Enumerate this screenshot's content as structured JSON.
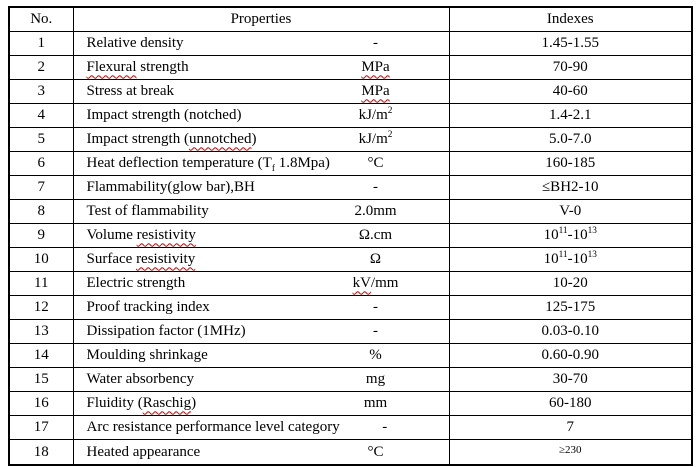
{
  "page": {
    "background": "#ffffff"
  },
  "table": {
    "border_color": "#000000",
    "text_color": "#000000",
    "squiggle_color": "#cc0000",
    "headers": {
      "no": "No.",
      "properties": "Properties",
      "indexes": "Indexes"
    },
    "rows": [
      {
        "no": "1",
        "name": [
          {
            "t": "Relative density"
          }
        ],
        "unit": [
          {
            "t": "-"
          }
        ],
        "index": [
          {
            "t": "1.45-1.55"
          }
        ]
      },
      {
        "no": "2",
        "name": [
          {
            "t": "Flexural",
            "sq": true
          },
          {
            "t": " strength"
          }
        ],
        "unit": [
          {
            "t": "MPa",
            "sq": true
          }
        ],
        "index": [
          {
            "t": "70-90"
          }
        ]
      },
      {
        "no": "3",
        "name": [
          {
            "t": "Stress at break"
          }
        ],
        "unit": [
          {
            "t": "MPa",
            "sq": true
          }
        ],
        "index": [
          {
            "t": "40-60"
          }
        ]
      },
      {
        "no": "4",
        "name": [
          {
            "t": "Impact strength (notched)"
          }
        ],
        "unit": [
          {
            "t": "kJ/m"
          },
          {
            "t": "2",
            "sup": true
          }
        ],
        "index": [
          {
            "t": "1.4-2.1"
          }
        ]
      },
      {
        "no": "5",
        "name": [
          {
            "t": "Impact strength ("
          },
          {
            "t": "unnotched",
            "sq": true
          },
          {
            "t": ")"
          }
        ],
        "unit": [
          {
            "t": "kJ/m"
          },
          {
            "t": "2",
            "sup": true
          }
        ],
        "index": [
          {
            "t": "5.0-7.0"
          }
        ]
      },
      {
        "no": "6",
        "name": [
          {
            "t": "Heat deflection temperature (T"
          },
          {
            "t": "f",
            "sub": true,
            "sq": true
          },
          {
            "t": " 1.8Mpa)"
          }
        ],
        "unit": [
          {
            "t": "°C"
          }
        ],
        "index": [
          {
            "t": "160-185"
          }
        ]
      },
      {
        "no": "7",
        "name": [
          {
            "t": "Flammability(glow bar),BH"
          }
        ],
        "unit": [
          {
            "t": "-"
          }
        ],
        "index": [
          {
            "t": "≤BH2-10"
          }
        ]
      },
      {
        "no": "8",
        "name": [
          {
            "t": "Test of flammability"
          }
        ],
        "unit": [
          {
            "t": "2.0mm"
          }
        ],
        "index": [
          {
            "t": "V-0"
          }
        ]
      },
      {
        "no": "9",
        "name": [
          {
            "t": "Volume "
          },
          {
            "t": "resistivity",
            "sq": true
          }
        ],
        "unit": [
          {
            "t": "Ω.cm"
          }
        ],
        "index": [
          {
            "t": "10"
          },
          {
            "t": "11",
            "sup": true
          },
          {
            "t": "-10"
          },
          {
            "t": "13",
            "sup": true
          }
        ]
      },
      {
        "no": "10",
        "name": [
          {
            "t": "Surface "
          },
          {
            "t": "resistivity",
            "sq": true
          }
        ],
        "unit": [
          {
            "t": "Ω"
          }
        ],
        "index": [
          {
            "t": "10"
          },
          {
            "t": "11",
            "sup": true
          },
          {
            "t": "-10"
          },
          {
            "t": "13",
            "sup": true
          }
        ]
      },
      {
        "no": "11",
        "name": [
          {
            "t": "Electric strength"
          }
        ],
        "unit": [
          {
            "t": "kV",
            "sq": true
          },
          {
            "t": "/mm"
          }
        ],
        "index": [
          {
            "t": "10-20"
          }
        ]
      },
      {
        "no": "12",
        "name": [
          {
            "t": "Proof tracking index"
          }
        ],
        "unit": [
          {
            "t": "-"
          }
        ],
        "index": [
          {
            "t": "125-175"
          }
        ]
      },
      {
        "no": "13",
        "name": [
          {
            "t": "Dissipation factor (1MHz)"
          }
        ],
        "unit": [
          {
            "t": "-"
          }
        ],
        "index": [
          {
            "t": "0.03-0.10"
          }
        ]
      },
      {
        "no": "14",
        "name": [
          {
            "t": "Moulding shrinkage"
          }
        ],
        "unit": [
          {
            "t": "%"
          }
        ],
        "index": [
          {
            "t": "0.60-0.90"
          }
        ]
      },
      {
        "no": "15",
        "name": [
          {
            "t": "Water absorbency"
          }
        ],
        "unit": [
          {
            "t": "mg"
          }
        ],
        "index": [
          {
            "t": "30-70"
          }
        ]
      },
      {
        "no": "16",
        "name": [
          {
            "t": "Fluidity ("
          },
          {
            "t": "Raschig",
            "sq": true
          },
          {
            "t": ")"
          }
        ],
        "unit": [
          {
            "t": "mm"
          }
        ],
        "index": [
          {
            "t": "60-180"
          }
        ]
      },
      {
        "no": "17",
        "name": [
          {
            "t": "Arc resistance performance level category"
          }
        ],
        "unit": [
          {
            "t": "-"
          }
        ],
        "index": [
          {
            "t": "7"
          }
        ]
      },
      {
        "no": "18",
        "name": [
          {
            "t": "Heated appearance"
          }
        ],
        "unit": [
          {
            "t": "°C"
          }
        ],
        "index": [
          {
            "t": "≥230",
            "small": true
          }
        ],
        "index_top": true
      }
    ]
  }
}
